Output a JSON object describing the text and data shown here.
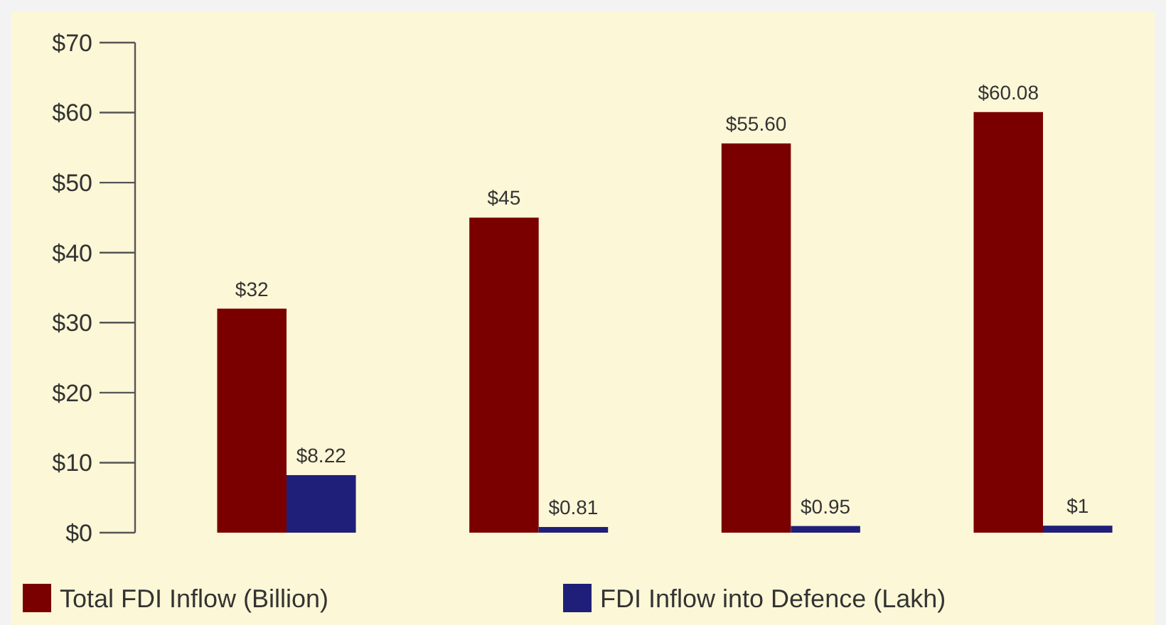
{
  "chart_data": {
    "type": "bar",
    "categories": [
      null,
      null,
      null,
      null
    ],
    "series": [
      {
        "name": "Total FDI Inflow (Billion)",
        "color": "#7a0000",
        "values": [
          32,
          45,
          55.6,
          60.08
        ],
        "value_labels": [
          "$32",
          "$45",
          "$55.60",
          "$60.08"
        ]
      },
      {
        "name": "FDI Inflow into Defence (Lakh)",
        "color": "#1f1f7a",
        "values": [
          8.22,
          0.81,
          0.95,
          1
        ],
        "value_labels": [
          "$8.22",
          "$0.81",
          "$0.95",
          "$1"
        ]
      }
    ],
    "ylim": [
      0,
      70
    ],
    "yticks": [
      {
        "value": 0,
        "label": "$0"
      },
      {
        "value": 10,
        "label": "$10"
      },
      {
        "value": 20,
        "label": "$20"
      },
      {
        "value": 30,
        "label": "$30"
      },
      {
        "value": 40,
        "label": "$40"
      },
      {
        "value": 50,
        "label": "$50"
      },
      {
        "value": 60,
        "label": "$60"
      },
      {
        "value": 70,
        "label": "$70"
      }
    ],
    "legend": "bottom left"
  }
}
